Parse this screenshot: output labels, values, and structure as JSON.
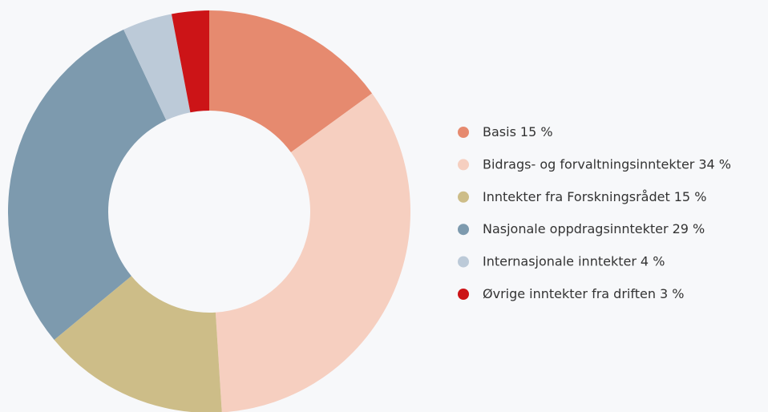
{
  "chart_data": {
    "type": "donut",
    "categories": [
      "Basis",
      "Bidrags- og forvaltningsinntekter",
      "Inntekter fra Forskningsrådet",
      "Nasjonale oppdragsinntekter",
      "Internasjonale inntekter",
      "Øvrige inntekter fra driften"
    ],
    "values": [
      15,
      34,
      15,
      29,
      4,
      3
    ],
    "value_labels": [
      "15 %",
      "34 %",
      "15 %",
      "29 %",
      "4 %",
      "3 %"
    ],
    "colors": [
      "#e68a6f",
      "#f6cfc0",
      "#cdbd88",
      "#7d9aae",
      "#bccad8",
      "#cc1417"
    ],
    "legend": "right"
  }
}
